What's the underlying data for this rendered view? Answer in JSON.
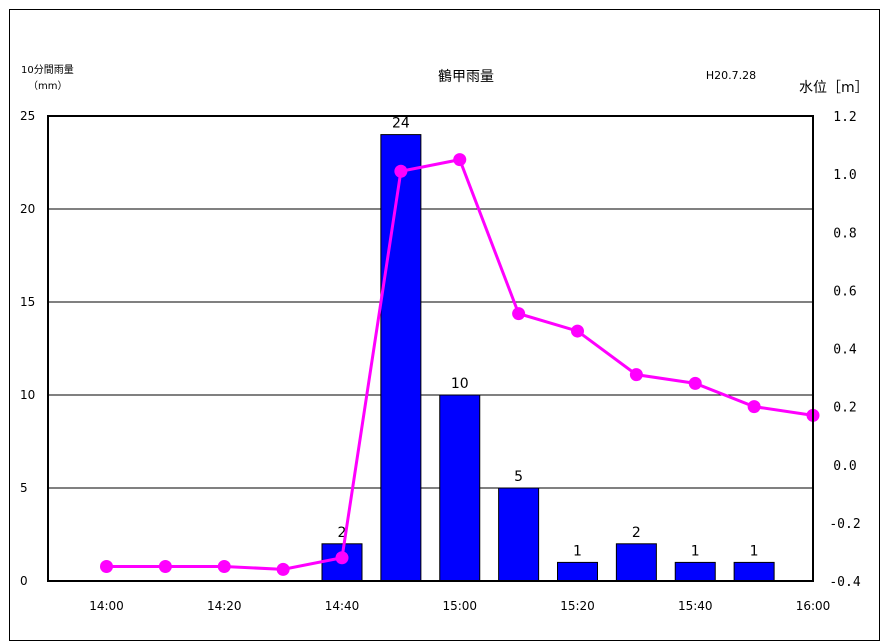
{
  "chart_data": {
    "type": "bar",
    "title": "鶴甲雨量",
    "date_label": "H20.7.28",
    "left_axis": {
      "label_line1": "10分間雨量",
      "label_line2": "（mm）",
      "ylim": [
        0,
        25
      ],
      "ticks": [
        0,
        5,
        10,
        15,
        20,
        25
      ]
    },
    "right_axis": {
      "label": "水位［m］",
      "ylim": [
        -0.4,
        1.2
      ],
      "ticks": [
        "-0.4",
        "-0.2",
        "0.0",
        "0.2",
        "0.4",
        "0.6",
        "0.8",
        "1.0",
        "1.2"
      ]
    },
    "x_ticks": [
      "14:00",
      "14:20",
      "14:40",
      "15:00",
      "15:20",
      "15:40",
      "16:00"
    ],
    "x_range_minutes": [
      0,
      120
    ],
    "bars": {
      "color": "#0000ff",
      "points": [
        {
          "minute": 40,
          "value": 2,
          "label": "2"
        },
        {
          "minute": 50,
          "value": 24,
          "label": "24"
        },
        {
          "minute": 60,
          "value": 10,
          "label": "10"
        },
        {
          "minute": 70,
          "value": 5,
          "label": "5"
        },
        {
          "minute": 80,
          "value": 1,
          "label": "1"
        },
        {
          "minute": 90,
          "value": 2,
          "label": "2"
        },
        {
          "minute": 100,
          "value": 1,
          "label": "1"
        },
        {
          "minute": 110,
          "value": 1,
          "label": "1"
        }
      ]
    },
    "line": {
      "color": "#ff00ff",
      "points": [
        {
          "minute": 0,
          "value": -0.35
        },
        {
          "minute": 10,
          "value": -0.35
        },
        {
          "minute": 20,
          "value": -0.35
        },
        {
          "minute": 30,
          "value": -0.36
        },
        {
          "minute": 40,
          "value": -0.32
        },
        {
          "minute": 50,
          "value": 1.01
        },
        {
          "minute": 60,
          "value": 1.05
        },
        {
          "minute": 70,
          "value": 0.52
        },
        {
          "minute": 80,
          "value": 0.46
        },
        {
          "minute": 90,
          "value": 0.31
        },
        {
          "minute": 100,
          "value": 0.28
        },
        {
          "minute": 110,
          "value": 0.2
        },
        {
          "minute": 120,
          "value": 0.17
        }
      ]
    },
    "grid": true
  }
}
